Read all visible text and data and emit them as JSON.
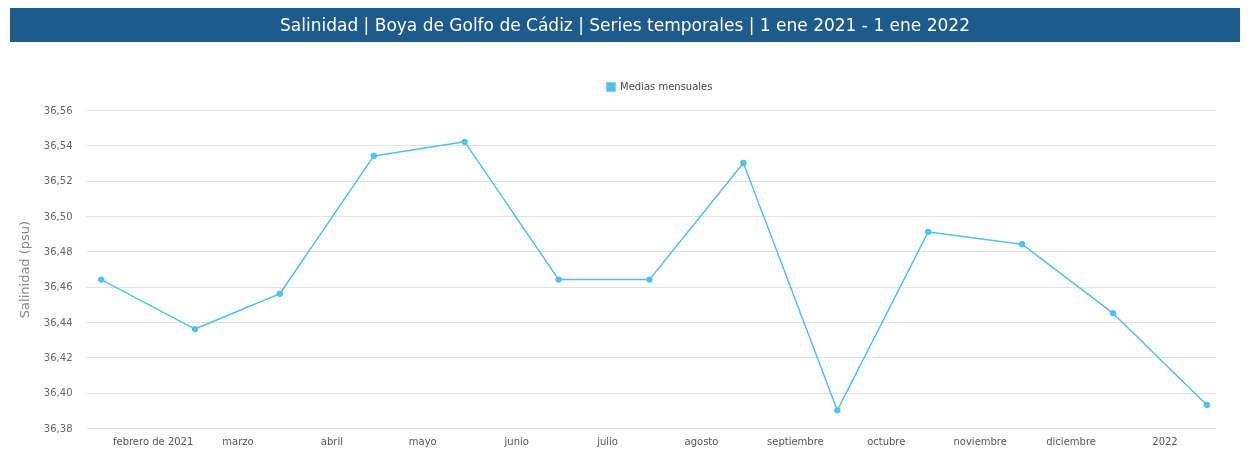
{
  "chart_data": {
    "type": "line",
    "title": "Salinidad | Boya de Golfo de Cádiz | Series temporales | 1 ene 2021 - 1 ene 2022",
    "ylabel": "Salinidad (psu)",
    "x": [
      "2021-01-15",
      "2021-02-15",
      "2021-03-15",
      "2021-04-15",
      "2021-05-15",
      "2021-06-15",
      "2021-07-15",
      "2021-08-15",
      "2021-09-15",
      "2021-10-15",
      "2021-11-15",
      "2021-12-15",
      "2022-01-15"
    ],
    "series": [
      {
        "name": "Medias mensuales",
        "color": "#4fc3ea",
        "values": [
          36.464,
          36.436,
          36.456,
          36.534,
          36.542,
          36.464,
          36.464,
          36.53,
          36.39,
          36.491,
          36.484,
          36.445,
          36.393
        ]
      }
    ],
    "xlim": [
      "2021-01-10",
      "2022-01-18"
    ],
    "xticks": [
      {
        "value": "2021-02-01",
        "label": "febrero de 2021"
      },
      {
        "value": "2021-03-01",
        "label": "marzo"
      },
      {
        "value": "2021-04-01",
        "label": "abril"
      },
      {
        "value": "2021-05-01",
        "label": "mayo"
      },
      {
        "value": "2021-06-01",
        "label": "junio"
      },
      {
        "value": "2021-07-01",
        "label": "julio"
      },
      {
        "value": "2021-08-01",
        "label": "agosto"
      },
      {
        "value": "2021-09-01",
        "label": "septiembre"
      },
      {
        "value": "2021-10-01",
        "label": "octubre"
      },
      {
        "value": "2021-11-01",
        "label": "noviembre"
      },
      {
        "value": "2021-12-01",
        "label": "diciembre"
      },
      {
        "value": "2022-01-01",
        "label": "2022"
      }
    ],
    "ylim": [
      36.38,
      36.56
    ],
    "yticks": [
      {
        "value": 36.38,
        "label": "36,38"
      },
      {
        "value": 36.4,
        "label": "36,40"
      },
      {
        "value": 36.42,
        "label": "36,42"
      },
      {
        "value": 36.44,
        "label": "36,44"
      },
      {
        "value": 36.46,
        "label": "36,46"
      },
      {
        "value": 36.48,
        "label": "36,48"
      },
      {
        "value": 36.5,
        "label": "36,50"
      },
      {
        "value": 36.52,
        "label": "36,52"
      },
      {
        "value": 36.54,
        "label": "36,54"
      },
      {
        "value": 36.56,
        "label": "36,56"
      }
    ],
    "grid": "y",
    "legend": "top",
    "marker": "circle",
    "line_style": "solid"
  }
}
